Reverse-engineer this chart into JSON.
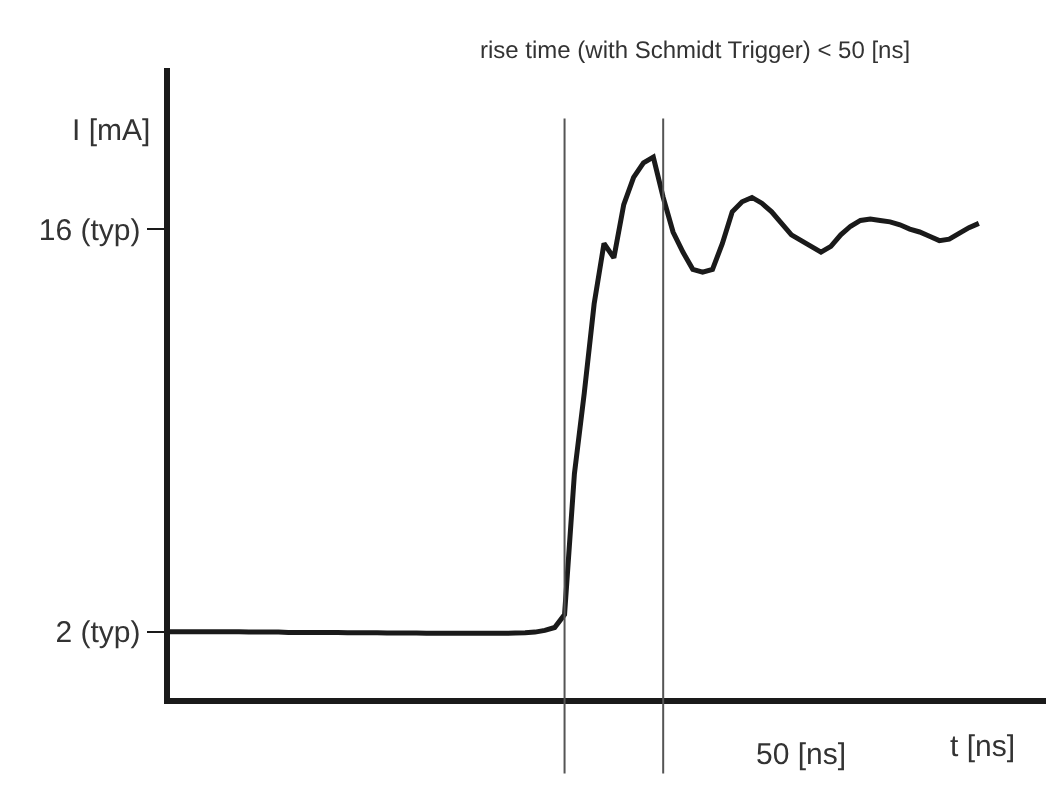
{
  "chart_data": {
    "type": "line",
    "title": "rise time (with Schmidt Trigger) < 50 [ns]",
    "xlabel": "t [ns]",
    "ylabel": "I [mA]",
    "categories": [
      null,
      null,
      null,
      null,
      null,
      null,
      null,
      null,
      null,
      null,
      null,
      null,
      null,
      null,
      null,
      null,
      null,
      null,
      null,
      null,
      null,
      null,
      null,
      null,
      null,
      null,
      null,
      null,
      null,
      null,
      null,
      null,
      null,
      null,
      null,
      null,
      null,
      null,
      null,
      null,
      null,
      null,
      null,
      null,
      null,
      null,
      null,
      null,
      null,
      null,
      null,
      null,
      null,
      null,
      null,
      null,
      null,
      null,
      null,
      null,
      null,
      null,
      null,
      null,
      null,
      null,
      null,
      null,
      null,
      null,
      null,
      null,
      null,
      null,
      null,
      null,
      null,
      null,
      null,
      null,
      null,
      null,
      null
    ],
    "series": [
      {
        "color": "#1a1a1a",
        "values": [
          2.0,
          2.0,
          2.0,
          2.0,
          2.0,
          2.0,
          2.0,
          2.0,
          1.99,
          1.99,
          1.99,
          1.99,
          1.98,
          1.98,
          1.98,
          1.98,
          1.98,
          1.98,
          1.97,
          1.97,
          1.97,
          1.97,
          1.96,
          1.96,
          1.96,
          1.96,
          1.95,
          1.95,
          1.95,
          1.95,
          1.95,
          1.95,
          1.95,
          1.95,
          1.95,
          1.96,
          1.97,
          1.99,
          2.05,
          2.15,
          2.6,
          7.5,
          10.3,
          13.4,
          15.5,
          15.0,
          16.85,
          17.8,
          18.3,
          18.5,
          17.1,
          15.9,
          15.2,
          14.6,
          14.5,
          14.6,
          15.5,
          16.6,
          16.95,
          17.1,
          16.9,
          16.6,
          16.2,
          15.8,
          15.6,
          15.4,
          15.2,
          15.4,
          15.8,
          16.1,
          16.3,
          16.35,
          16.3,
          16.25,
          16.15,
          16.0,
          15.9,
          15.75,
          15.6,
          15.65,
          15.85,
          16.05,
          16.2
        ]
      }
    ],
    "ylim": [
      -0.3,
      21.6
    ],
    "yticks": [
      {
        "value": 2,
        "label": "2 (typ)"
      },
      {
        "value": 16,
        "label": "16 (typ)"
      }
    ],
    "tick_labels": "y",
    "marker": "none",
    "line_style": "solid",
    "annotations": [
      "50 [ns]"
    ]
  }
}
